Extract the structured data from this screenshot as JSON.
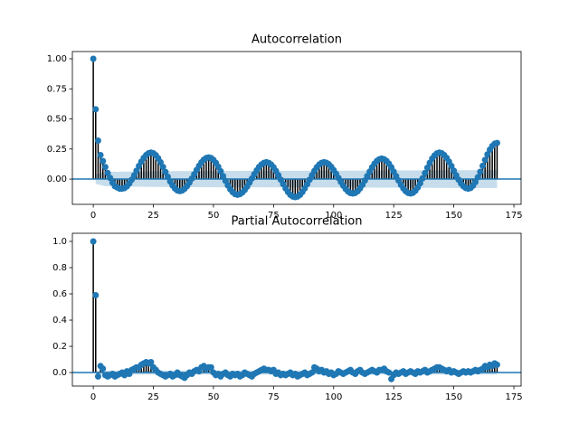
{
  "chart_data": [
    {
      "type": "stem",
      "title": "Autocorrelation",
      "color": "#1f77b4",
      "stem_color": "#000000",
      "band_color": "#1f77b4",
      "xlim": [
        -8.7,
        178
      ],
      "xticks": [
        0,
        25,
        50,
        75,
        100,
        125,
        150,
        175
      ],
      "ylim": [
        -0.21,
        1.06
      ],
      "yticks": [
        {
          "value": 0,
          "label": "0.00"
        },
        {
          "value": 0.25,
          "label": "0.25"
        },
        {
          "value": 0.5,
          "label": "0.50"
        },
        {
          "value": 0.75,
          "label": "0.75"
        },
        {
          "value": 1,
          "label": "1.00"
        }
      ],
      "conf_x": [
        1,
        5,
        25,
        50,
        100,
        168
      ],
      "conf_upper": [
        0.04,
        0.06,
        0.065,
        0.068,
        0.07,
        0.075
      ],
      "x": [
        0,
        1,
        2,
        3,
        4,
        5,
        6,
        7,
        8,
        9,
        10,
        11,
        12,
        13,
        14,
        15,
        16,
        17,
        18,
        19,
        20,
        21,
        22,
        23,
        24,
        25,
        26,
        27,
        28,
        29,
        30,
        31,
        32,
        33,
        34,
        35,
        36,
        37,
        38,
        39,
        40,
        41,
        42,
        43,
        44,
        45,
        46,
        47,
        48,
        49,
        50,
        51,
        52,
        53,
        54,
        55,
        56,
        57,
        58,
        59,
        60,
        61,
        62,
        63,
        64,
        65,
        66,
        67,
        68,
        69,
        70,
        71,
        72,
        73,
        74,
        75,
        76,
        77,
        78,
        79,
        80,
        81,
        82,
        83,
        84,
        85,
        86,
        87,
        88,
        89,
        90,
        91,
        92,
        93,
        94,
        95,
        96,
        97,
        98,
        99,
        100,
        101,
        102,
        103,
        104,
        105,
        106,
        107,
        108,
        109,
        110,
        111,
        112,
        113,
        114,
        115,
        116,
        117,
        118,
        119,
        120,
        121,
        122,
        123,
        124,
        125,
        126,
        127,
        128,
        129,
        130,
        131,
        132,
        133,
        134,
        135,
        136,
        137,
        138,
        139,
        140,
        141,
        142,
        143,
        144,
        145,
        146,
        147,
        148,
        149,
        150,
        151,
        152,
        153,
        154,
        155,
        156,
        157,
        158,
        159,
        160,
        161,
        162,
        163,
        164,
        165,
        166,
        167,
        168
      ],
      "values": [
        1.0,
        0.58,
        0.32,
        0.2,
        0.15,
        0.1,
        0.05,
        0.01,
        -0.03,
        -0.06,
        -0.07,
        -0.08,
        -0.08,
        -0.075,
        -0.06,
        -0.036,
        -0.005,
        0.031,
        0.07,
        0.109,
        0.145,
        0.176,
        0.2,
        0.215,
        0.22,
        0.215,
        0.199,
        0.173,
        0.14,
        0.101,
        0.06,
        0.019,
        -0.02,
        -0.053,
        -0.079,
        -0.095,
        -0.1,
        -0.095,
        -0.081,
        -0.059,
        -0.03,
        0.004,
        0.04,
        0.076,
        0.11,
        0.139,
        0.161,
        0.175,
        0.18,
        0.175,
        0.159,
        0.135,
        0.103,
        0.065,
        0.025,
        -0.015,
        -0.053,
        -0.085,
        -0.109,
        -0.125,
        -0.13,
        -0.125,
        -0.112,
        -0.091,
        -0.063,
        -0.03,
        0.005,
        0.04,
        0.073,
        0.101,
        0.122,
        0.135,
        0.14,
        0.135,
        0.121,
        0.098,
        0.068,
        0.032,
        -0.005,
        -0.042,
        -0.078,
        -0.108,
        -0.131,
        -0.145,
        -0.15,
        -0.145,
        -0.131,
        -0.108,
        -0.078,
        -0.042,
        -0.005,
        0.032,
        0.068,
        0.098,
        0.121,
        0.135,
        0.14,
        0.136,
        0.123,
        0.102,
        0.075,
        0.044,
        0.01,
        -0.024,
        -0.055,
        -0.082,
        -0.103,
        -0.116,
        -0.12,
        -0.115,
        -0.101,
        -0.078,
        -0.048,
        -0.012,
        0.025,
        0.062,
        0.098,
        0.128,
        0.151,
        0.165,
        0.17,
        0.165,
        0.151,
        0.128,
        0.098,
        0.062,
        0.025,
        -0.012,
        -0.048,
        -0.078,
        -0.101,
        -0.115,
        -0.12,
        -0.114,
        -0.097,
        -0.07,
        -0.035,
        0.006,
        0.05,
        0.094,
        0.135,
        0.17,
        0.197,
        0.214,
        0.22,
        0.215,
        0.2,
        0.176,
        0.145,
        0.109,
        0.07,
        0.031,
        -0.005,
        -0.036,
        -0.06,
        -0.075,
        -0.08,
        -0.074,
        -0.055,
        -0.025,
        0.015,
        0.061,
        0.11,
        0.159,
        0.205,
        0.245,
        0.275,
        0.294,
        0.3
      ]
    },
    {
      "type": "stem",
      "title": "Partial Autocorrelation",
      "color": "#1f77b4",
      "stem_color": "#000000",
      "band_color": "#1f77b4",
      "xlim": [
        -8.7,
        178
      ],
      "xticks": [
        0,
        25,
        50,
        75,
        100,
        125,
        150,
        175
      ],
      "ylim": [
        -0.103,
        1.062
      ],
      "yticks": [
        {
          "value": 0,
          "label": "0.0"
        },
        {
          "value": 0.2,
          "label": "0.2"
        },
        {
          "value": 0.4,
          "label": "0.4"
        },
        {
          "value": 0.6,
          "label": "0.6"
        },
        {
          "value": 0.8,
          "label": "0.8"
        },
        {
          "value": 1,
          "label": "1.0"
        }
      ],
      "conf_x": [
        1,
        168
      ],
      "conf_upper": [
        0.015,
        0.015
      ],
      "x": [
        0,
        1,
        2,
        3,
        4,
        5,
        6,
        7,
        8,
        9,
        10,
        11,
        12,
        13,
        14,
        15,
        16,
        17,
        18,
        19,
        20,
        21,
        22,
        23,
        24,
        25,
        26,
        27,
        28,
        29,
        30,
        31,
        32,
        33,
        34,
        35,
        36,
        37,
        38,
        39,
        40,
        41,
        42,
        43,
        44,
        45,
        46,
        47,
        48,
        49,
        50,
        51,
        52,
        53,
        54,
        55,
        56,
        57,
        58,
        59,
        60,
        61,
        62,
        63,
        64,
        65,
        66,
        67,
        68,
        69,
        70,
        71,
        72,
        73,
        74,
        75,
        76,
        77,
        78,
        79,
        80,
        81,
        82,
        83,
        84,
        85,
        86,
        87,
        88,
        89,
        90,
        91,
        92,
        93,
        94,
        95,
        96,
        97,
        98,
        99,
        100,
        101,
        102,
        103,
        104,
        105,
        106,
        107,
        108,
        109,
        110,
        111,
        112,
        113,
        114,
        115,
        116,
        117,
        118,
        119,
        120,
        121,
        122,
        123,
        124,
        125,
        126,
        127,
        128,
        129,
        130,
        131,
        132,
        133,
        134,
        135,
        136,
        137,
        138,
        139,
        140,
        141,
        142,
        143,
        144,
        145,
        146,
        147,
        148,
        149,
        150,
        151,
        152,
        153,
        154,
        155,
        156,
        157,
        158,
        159,
        160,
        161,
        162,
        163,
        164,
        165,
        166,
        167,
        168
      ],
      "values": [
        1.0,
        0.59,
        -0.03,
        0.05,
        0.03,
        -0.02,
        -0.03,
        -0.02,
        -0.01,
        -0.03,
        -0.02,
        -0.01,
        0.0,
        -0.02,
        0.01,
        -0.01,
        0.02,
        0.03,
        0.04,
        0.04,
        0.06,
        0.07,
        0.08,
        0.07,
        0.08,
        0.04,
        0.02,
        0.0,
        -0.01,
        -0.02,
        -0.03,
        -0.02,
        -0.01,
        -0.03,
        -0.02,
        0.0,
        -0.02,
        -0.03,
        -0.04,
        -0.02,
        0.0,
        -0.01,
        0.01,
        0.02,
        0.01,
        0.04,
        0.05,
        0.03,
        0.04,
        0.04,
        0.0,
        -0.02,
        -0.01,
        -0.03,
        -0.01,
        0.0,
        -0.02,
        -0.03,
        -0.01,
        -0.02,
        -0.01,
        -0.03,
        -0.02,
        0.0,
        -0.01,
        -0.02,
        -0.03,
        -0.01,
        0.0,
        0.01,
        0.02,
        0.03,
        0.02,
        0.02,
        0.01,
        0.02,
        -0.01,
        0.0,
        -0.02,
        -0.01,
        -0.02,
        -0.01,
        0.0,
        -0.02,
        -0.01,
        -0.03,
        -0.02,
        -0.01,
        0.0,
        -0.02,
        -0.01,
        0.0,
        0.04,
        0.03,
        0.01,
        0.02,
        0.0,
        0.01,
        -0.01,
        0.0,
        -0.02,
        -0.01,
        0.01,
        0.0,
        -0.01,
        0.0,
        0.01,
        0.02,
        0.0,
        -0.01,
        0.01,
        0.02,
        0.0,
        -0.01,
        0.0,
        0.01,
        0.02,
        0.01,
        0.0,
        0.02,
        0.02,
        0.03,
        0.01,
        0.0,
        -0.05,
        -0.02,
        0.0,
        -0.01,
        0.0,
        0.01,
        -0.01,
        0.0,
        0.01,
        0.0,
        -0.01,
        0.01,
        0.0,
        0.01,
        0.02,
        0.0,
        0.01,
        0.02,
        0.03,
        0.04,
        0.04,
        0.03,
        0.02,
        0.01,
        0.02,
        0.0,
        0.01,
        0.0,
        -0.01,
        0.0,
        0.01,
        0.0,
        0.01,
        0.0,
        0.01,
        0.02,
        0.01,
        0.02,
        0.03,
        0.05,
        0.04,
        0.06,
        0.05,
        0.07,
        0.06
      ]
    }
  ]
}
